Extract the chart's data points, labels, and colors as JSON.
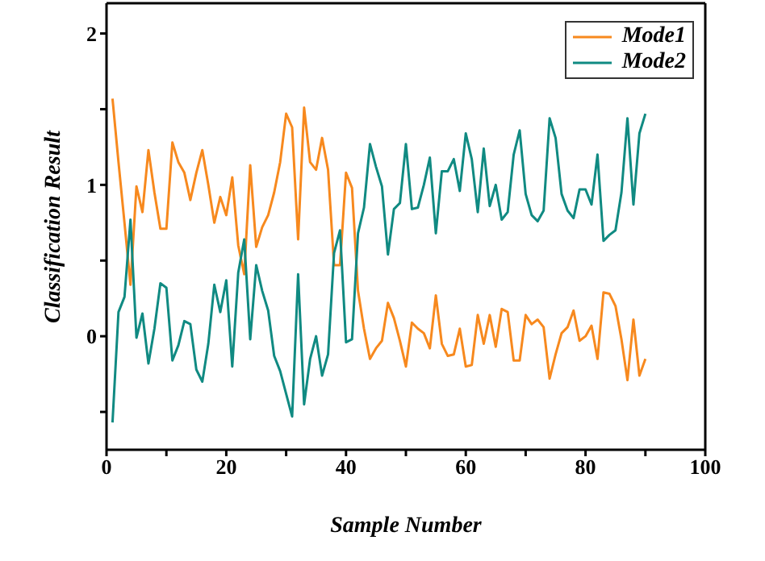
{
  "chart_data": {
    "type": "line",
    "xlabel": "Sample Number",
    "ylabel": "Classification Result",
    "x": [
      1,
      2,
      3,
      4,
      5,
      6,
      7,
      8,
      9,
      10,
      11,
      12,
      13,
      14,
      15,
      16,
      17,
      18,
      19,
      20,
      21,
      22,
      23,
      24,
      25,
      26,
      27,
      28,
      29,
      30,
      31,
      32,
      33,
      34,
      35,
      36,
      37,
      38,
      39,
      40,
      41,
      42,
      43,
      44,
      45,
      46,
      47,
      48,
      49,
      50,
      51,
      52,
      53,
      54,
      55,
      56,
      57,
      58,
      59,
      60,
      61,
      62,
      63,
      64,
      65,
      66,
      67,
      68,
      69,
      70,
      71,
      72,
      73,
      74,
      75,
      76,
      77,
      78,
      79,
      80,
      81,
      82,
      83,
      84,
      85,
      86,
      87,
      88,
      89,
      90
    ],
    "series": [
      {
        "name": "Mode1",
        "color": "#f7891e",
        "values": [
          1.57,
          1.15,
          0.75,
          0.34,
          0.99,
          0.82,
          1.23,
          0.95,
          0.71,
          0.71,
          1.28,
          1.15,
          1.08,
          0.9,
          1.08,
          1.23,
          1.0,
          0.75,
          0.92,
          0.8,
          1.05,
          0.6,
          0.41,
          1.13,
          0.59,
          0.72,
          0.8,
          0.95,
          1.15,
          1.47,
          1.38,
          0.64,
          1.51,
          1.15,
          1.1,
          1.31,
          1.1,
          0.47,
          0.47,
          1.08,
          0.98,
          0.3,
          0.05,
          -0.15,
          -0.08,
          -0.03,
          0.22,
          0.12,
          -0.03,
          -0.2,
          0.09,
          0.05,
          0.02,
          -0.08,
          0.27,
          -0.05,
          -0.13,
          -0.12,
          0.05,
          -0.2,
          -0.19,
          0.14,
          -0.05,
          0.14,
          -0.07,
          0.18,
          0.16,
          -0.16,
          -0.16,
          0.14,
          0.08,
          0.11,
          0.06,
          -0.28,
          -0.12,
          0.02,
          0.06,
          0.17,
          -0.03,
          0.0,
          0.07,
          -0.15,
          0.29,
          0.28,
          0.2,
          -0.02,
          -0.29,
          0.11,
          -0.26,
          -0.15
        ]
      },
      {
        "name": "Mode2",
        "color": "#108a82",
        "values": [
          -0.57,
          0.16,
          0.26,
          0.77,
          -0.01,
          0.15,
          -0.18,
          0.05,
          0.35,
          0.32,
          -0.16,
          -0.06,
          0.1,
          0.08,
          -0.22,
          -0.3,
          -0.05,
          0.34,
          0.16,
          0.37,
          -0.2,
          0.42,
          0.64,
          -0.02,
          0.47,
          0.3,
          0.17,
          -0.13,
          -0.23,
          -0.38,
          -0.53,
          0.41,
          -0.45,
          -0.15,
          0.0,
          -0.26,
          -0.12,
          0.55,
          0.7,
          -0.04,
          -0.02,
          0.68,
          0.85,
          1.27,
          1.12,
          0.99,
          0.54,
          0.84,
          0.88,
          1.27,
          0.84,
          0.85,
          1.0,
          1.18,
          0.68,
          1.09,
          1.09,
          1.17,
          0.96,
          1.34,
          1.17,
          0.82,
          1.24,
          0.86,
          1.0,
          0.77,
          0.82,
          1.2,
          1.36,
          0.94,
          0.8,
          0.76,
          0.83,
          1.44,
          1.31,
          0.94,
          0.83,
          0.78,
          0.97,
          0.97,
          0.87,
          1.2,
          0.63,
          0.67,
          0.7,
          0.95,
          1.44,
          0.87,
          1.34,
          1.47
        ]
      }
    ],
    "xlim": [
      0,
      100
    ],
    "xticks": [
      0,
      {
        "value": 10,
        "label": null
      },
      20,
      {
        "value": 30,
        "label": null
      },
      40,
      {
        "value": 50,
        "label": null
      },
      60,
      {
        "value": 70,
        "label": null
      },
      80,
      {
        "value": 90,
        "label": null
      },
      100
    ],
    "ylim": [
      -0.75,
      2.2
    ],
    "yticks": [
      {
        "value": -0.5,
        "label": null
      },
      0,
      {
        "value": 0.5,
        "label": null
      },
      1,
      {
        "value": 1.5,
        "label": null
      },
      2
    ],
    "legend": "top right",
    "grid": false,
    "marker": "none",
    "line_style": "solid"
  }
}
